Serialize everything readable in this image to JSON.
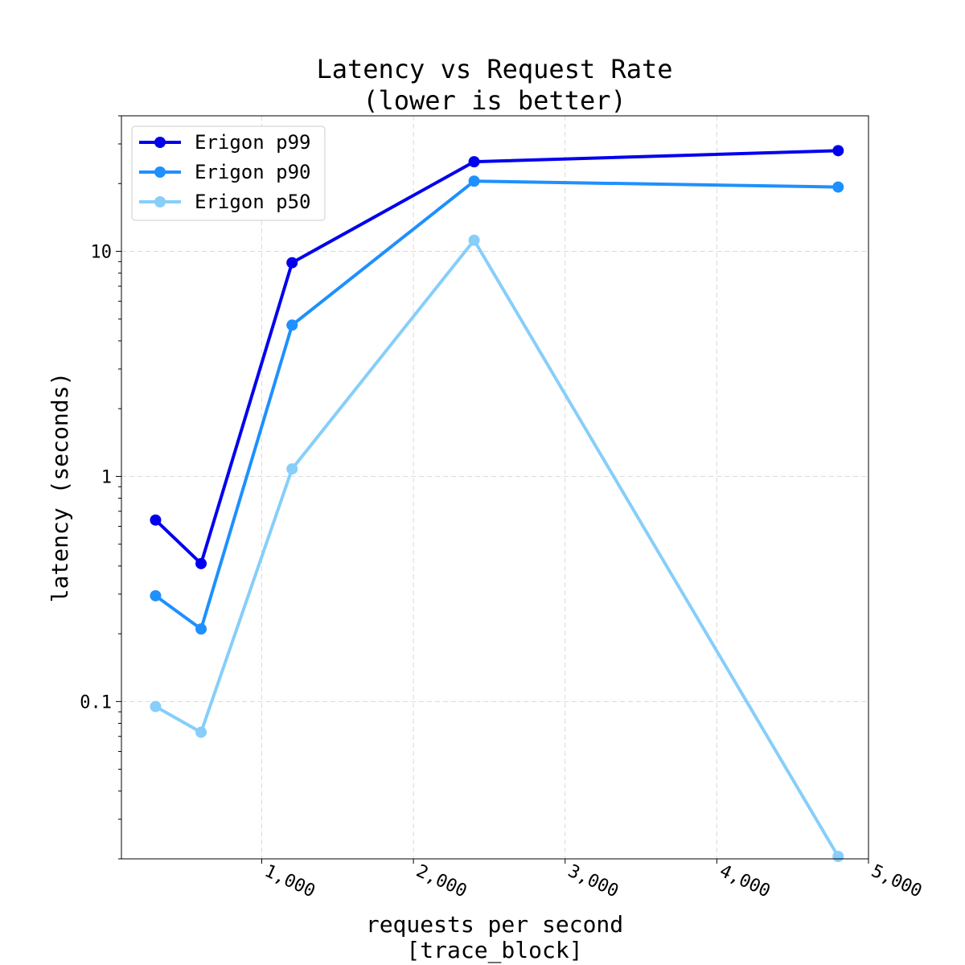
{
  "chart_data": {
    "type": "line",
    "title": [
      "Latency vs Request Rate",
      "(lower is better)"
    ],
    "xlabel": [
      "requests per second",
      "[trace_block]"
    ],
    "ylabel": "latency (seconds)",
    "xscale": "linear",
    "yscale": "log",
    "xlim": [
      75,
      5000
    ],
    "ylim": [
      0.02,
      40
    ],
    "xticks": [
      {
        "value": 1000,
        "label": "1,000"
      },
      {
        "value": 2000,
        "label": "2,000"
      },
      {
        "value": 3000,
        "label": "3,000"
      },
      {
        "value": 4000,
        "label": "4,000"
      },
      {
        "value": 5000,
        "label": "5,000"
      }
    ],
    "yticks": [
      {
        "value": 0.1,
        "label": "0.1"
      },
      {
        "value": 1,
        "label": "1"
      },
      {
        "value": 10,
        "label": "10"
      }
    ],
    "grid": true,
    "legend_position": "top-left",
    "x": [
      300,
      600,
      1200,
      2400,
      4800
    ],
    "series": [
      {
        "name": "Erigon p99",
        "color": "#0000ee",
        "values": [
          0.64,
          0.41,
          8.9,
          25,
          28
        ]
      },
      {
        "name": "Erigon p90",
        "color": "#1e90ff",
        "values": [
          0.295,
          0.21,
          4.7,
          20.5,
          19.3
        ]
      },
      {
        "name": "Erigon p50",
        "color": "#87cefa",
        "values": [
          0.095,
          0.073,
          1.08,
          11.2,
          0.0205
        ]
      }
    ]
  }
}
